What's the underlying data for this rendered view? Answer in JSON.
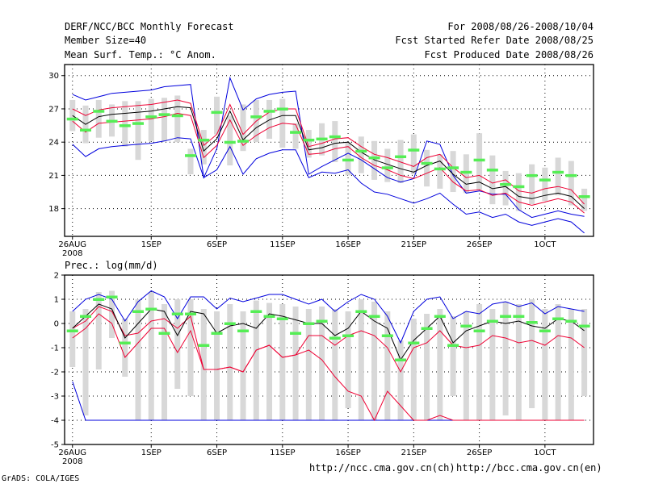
{
  "header": {
    "title": "DERF/NCC/BCC Monthly Forecast",
    "member": "Member Size=40",
    "variable": "Mean Surf. Temp.: °C Anom.",
    "period": "For 2008/08/26-2008/10/04",
    "start": "Fcst Started Refer Date 2008/08/25",
    "produced": "Fcst Produced Date 2008/08/26"
  },
  "footer": {
    "url_ch": "http://ncc.cma.gov.cn(ch)",
    "url_en": "http://bcc.cma.gov.cn(en)",
    "grads": "GrADS: COLA/IGES"
  },
  "colors": {
    "max_min": "#0000dd",
    "quartile": "#ee0033",
    "mean": "#000000",
    "median": "#55ee55",
    "box": "#d8d8d8",
    "grid": "#000000"
  },
  "chart_data": [
    {
      "type": "line",
      "title": "Mean Surf. Temp.: °C Anom.",
      "ylim": [
        15.5,
        31
      ],
      "yticks": [
        18,
        21,
        24,
        27,
        30
      ],
      "xlim": [
        -0.6,
        39.7
      ],
      "xtick_pos": [
        0,
        6,
        11,
        16,
        21,
        26,
        31,
        36
      ],
      "xtick_labels": [
        "26AUG",
        "1SEP",
        "6SEP",
        "11SEP",
        "16SEP",
        "21SEP",
        "26SEP",
        "1OCT"
      ],
      "xsub": "2008",
      "series": [
        {
          "name": "max",
          "values": [
            28.3,
            27.8,
            28.1,
            28.4,
            28.5,
            28.6,
            28.7,
            29.0,
            29.1,
            29.2,
            20.8,
            23.4,
            29.8,
            26.9,
            27.9,
            28.3,
            28.5,
            28.6,
            21.1,
            21.8,
            22.4,
            23.0,
            22.4,
            21.6,
            20.8,
            20.4,
            20.7,
            24.1,
            23.8,
            21.0,
            19.4,
            19.6,
            19.3,
            19.3,
            17.9,
            17.2,
            17.5,
            17.8,
            17.5,
            17.3
          ]
        },
        {
          "name": "q3",
          "values": [
            27.0,
            26.4,
            26.9,
            27.1,
            27.2,
            27.3,
            27.4,
            27.6,
            27.8,
            27.5,
            23.7,
            24.7,
            27.4,
            24.7,
            25.9,
            26.7,
            27.0,
            27.0,
            23.6,
            23.9,
            24.3,
            24.4,
            23.6,
            22.9,
            22.6,
            22.2,
            21.8,
            22.6,
            22.9,
            21.7,
            20.8,
            21.0,
            20.3,
            20.6,
            19.6,
            19.4,
            19.8,
            20.0,
            19.7,
            18.4
          ]
        },
        {
          "name": "mean",
          "values": [
            26.4,
            25.6,
            26.3,
            26.5,
            26.6,
            26.7,
            26.8,
            27.0,
            27.2,
            27.1,
            23.2,
            24.3,
            26.8,
            24.2,
            25.3,
            26.0,
            26.4,
            26.4,
            23.3,
            23.5,
            23.9,
            24.0,
            23.1,
            22.4,
            22.0,
            21.6,
            21.3,
            21.9,
            22.3,
            21.1,
            20.2,
            20.4,
            19.8,
            20.0,
            19.1,
            18.9,
            19.2,
            19.4,
            19.1,
            18.0
          ]
        },
        {
          "name": "q1",
          "values": [
            25.9,
            24.9,
            25.7,
            25.8,
            25.9,
            26.0,
            26.1,
            26.3,
            26.6,
            26.4,
            22.6,
            23.7,
            26.0,
            23.7,
            24.6,
            25.3,
            25.7,
            25.6,
            22.9,
            23.0,
            23.4,
            23.6,
            22.6,
            21.9,
            21.5,
            21.0,
            20.7,
            21.2,
            21.7,
            20.4,
            19.6,
            19.7,
            19.2,
            19.4,
            18.6,
            18.3,
            18.6,
            18.9,
            18.6,
            17.6
          ]
        },
        {
          "name": "min",
          "values": [
            23.8,
            22.7,
            23.4,
            23.6,
            23.7,
            23.8,
            23.9,
            24.1,
            24.4,
            24.3,
            20.8,
            21.5,
            23.6,
            21.1,
            22.5,
            23.0,
            23.3,
            23.3,
            20.8,
            21.3,
            21.2,
            21.5,
            20.3,
            19.5,
            19.3,
            18.9,
            18.5,
            18.9,
            19.4,
            18.4,
            17.5,
            17.7,
            17.2,
            17.5,
            16.8,
            16.5,
            16.8,
            17.1,
            16.8,
            15.8
          ]
        },
        {
          "name": "median",
          "values": [
            26.1,
            25.1,
            26.8,
            25.9,
            25.5,
            25.7,
            26.3,
            26.5,
            26.4,
            22.8,
            24.2,
            26.7,
            24.0,
            24.1,
            26.3,
            26.8,
            27.0,
            24.9,
            24.2,
            24.3,
            24.5,
            22.4,
            23.2,
            22.6,
            21.7,
            22.7,
            23.3,
            22.1,
            21.6,
            21.7,
            21.3,
            22.4,
            21.5,
            20.2,
            20.0,
            21.0,
            20.6,
            21.3,
            21.0,
            19.1
          ]
        },
        {
          "name": "box_high",
          "values": [
            27.8,
            27.3,
            27.8,
            27.4,
            27.7,
            27.7,
            27.9,
            28.0,
            28.2,
            23.4,
            25.1,
            28.1,
            26.4,
            27.4,
            27.8,
            27.8,
            27.9,
            25.7,
            25.1,
            25.7,
            25.9,
            24.0,
            24.5,
            24.1,
            23.4,
            24.2,
            24.7,
            23.3,
            22.9,
            23.2,
            22.9,
            24.8,
            22.8,
            21.4,
            21.2,
            22.0,
            21.7,
            22.6,
            22.3,
            19.8
          ]
        },
        {
          "name": "box_low",
          "values": [
            25.0,
            23.9,
            24.4,
            24.5,
            23.6,
            22.4,
            24.1,
            24.1,
            24.0,
            21.1,
            22.0,
            24.7,
            21.9,
            23.2,
            24.0,
            24.3,
            23.5,
            23.4,
            22.6,
            22.8,
            22.2,
            21.0,
            21.2,
            20.6,
            20.4,
            20.3,
            21.1,
            20.0,
            19.8,
            19.5,
            19.4,
            19.7,
            18.4,
            18.3,
            17.8,
            18.4,
            18.7,
            19.2,
            18.3,
            17.8
          ]
        }
      ]
    },
    {
      "type": "line",
      "title": "Prec.: log(mm/d)",
      "ylim": [
        -5,
        2
      ],
      "yticks": [
        -5,
        -4,
        -3,
        -2,
        -1,
        0,
        1,
        2
      ],
      "xlim": [
        -0.6,
        39.7
      ],
      "xtick_pos": [
        0,
        6,
        11,
        16,
        21,
        26,
        31,
        36
      ],
      "xtick_labels": [
        "26AUG",
        "1SEP",
        "6SEP",
        "11SEP",
        "16SEP",
        "21SEP",
        "26SEP",
        "1OCT"
      ],
      "xsub": "2008",
      "series": [
        {
          "name": "max",
          "values": [
            0.5,
            1.0,
            1.2,
            1.0,
            0.1,
            0.9,
            1.35,
            1.1,
            0.2,
            1.1,
            1.1,
            0.6,
            1.05,
            0.9,
            1.05,
            1.2,
            1.2,
            1.0,
            0.8,
            1.0,
            0.5,
            0.9,
            1.2,
            1.0,
            0.3,
            -0.8,
            0.5,
            1.0,
            1.1,
            0.2,
            0.5,
            0.4,
            0.8,
            0.9,
            0.7,
            0.85,
            0.4,
            0.7,
            0.6,
            0.5
          ]
        },
        {
          "name": "mean",
          "values": [
            -0.2,
            0.3,
            0.8,
            0.6,
            -0.6,
            0.0,
            0.6,
            0.5,
            -0.5,
            0.5,
            0.4,
            -0.4,
            -0.1,
            0.0,
            -0.2,
            0.4,
            0.3,
            0.15,
            0.0,
            0.0,
            -0.5,
            -0.2,
            0.5,
            0.1,
            -0.2,
            -1.5,
            -0.7,
            -0.2,
            0.3,
            -0.8,
            -0.3,
            -0.1,
            0.1,
            0.0,
            0.1,
            -0.1,
            -0.2,
            0.2,
            0.1,
            -0.3
          ]
        },
        {
          "name": "q1",
          "values": [
            -0.6,
            -0.2,
            0.4,
            0.0,
            -1.4,
            -0.8,
            -0.2,
            -0.2,
            -1.2,
            -0.3,
            -1.9,
            -1.9,
            -1.8,
            -2.0,
            -1.1,
            -0.9,
            -1.4,
            -1.3,
            -1.1,
            -1.5,
            -2.2,
            -2.8,
            -3.0,
            -4.0,
            -2.8,
            -3.4,
            -4.0,
            -4.0,
            -3.8,
            -4.0,
            -4.0,
            -4.0,
            -4.0,
            -4.0,
            -4.0,
            -4.0,
            -4.0,
            -4.0,
            -4.0,
            -4.0
          ]
        },
        {
          "name": "q3",
          "values": [
            -0.2,
            0.1,
            0.7,
            0.5,
            -0.5,
            -0.4,
            0.1,
            0.2,
            -0.2,
            0.3,
            -1.9,
            -1.9,
            -1.8,
            -2.0,
            -1.1,
            -0.9,
            -1.4,
            -1.3,
            -0.5,
            -0.5,
            -0.9,
            -0.5,
            -0.3,
            -0.5,
            -1.0,
            -2.0,
            -1.0,
            -0.8,
            -0.3,
            -0.9,
            -1.0,
            -0.9,
            -0.5,
            -0.6,
            -0.8,
            -0.7,
            -0.9,
            -0.5,
            -0.6,
            -1.0
          ]
        },
        {
          "name": "min",
          "values": [
            -2.4,
            -4.0,
            -4.0,
            -4.0,
            -4.0,
            -4.0,
            -4.0,
            -4.0,
            -4.0,
            -4.0,
            -4.0,
            -4.0,
            -4.0,
            -4.0,
            -4.0,
            -4.0,
            -4.0,
            -4.0,
            -4.0,
            -4.0,
            -4.0,
            -4.0,
            -4.0,
            -4.0,
            -4.0,
            -4.0,
            -4.0,
            -4.0,
            -4.0,
            -4.0,
            -4.0,
            -4.0,
            -4.0,
            -4.0,
            -4.0,
            -4.0,
            -4.0,
            -4.0,
            -4.0,
            -4.0
          ]
        },
        {
          "name": "median",
          "values": [
            -0.3,
            0.3,
            1.0,
            1.1,
            -0.8,
            0.5,
            0.6,
            -0.4,
            0.4,
            0.4,
            -0.9,
            -0.4,
            0.0,
            -0.3,
            0.5,
            0.3,
            0.2,
            -0.4,
            0.0,
            0.1,
            -0.6,
            -0.5,
            0.5,
            0.3,
            -0.5,
            -1.5,
            -0.8,
            -0.2,
            0.3,
            -0.9,
            -0.1,
            -0.3,
            0.1,
            0.3,
            0.3,
            0.05,
            -0.3,
            0.2,
            0.1,
            -0.1
          ]
        },
        {
          "name": "box_high",
          "values": [
            0.5,
            0.6,
            1.3,
            1.35,
            0.2,
            1.0,
            1.3,
            0.8,
            1.0,
            1.0,
            0.6,
            0.5,
            0.8,
            0.5,
            0.95,
            0.85,
            0.8,
            0.7,
            0.6,
            0.7,
            0.6,
            0.5,
            1.0,
            0.9,
            0.5,
            -0.7,
            0.2,
            0.4,
            0.6,
            0.3,
            0.5,
            0.8,
            0.6,
            0.9,
            0.8,
            1.0,
            0.6,
            0.8,
            0.6,
            0.6
          ]
        },
        {
          "name": "box_low",
          "values": [
            -1.8,
            -3.8,
            -1.9,
            -0.6,
            -2.2,
            -4.0,
            -4.0,
            -4.0,
            -2.7,
            -3.0,
            -4.0,
            -4.0,
            -4.0,
            -4.0,
            -4.0,
            -4.0,
            -4.0,
            -4.0,
            -4.0,
            -4.0,
            -4.0,
            -3.5,
            -4.0,
            -4.0,
            -4.0,
            -4.0,
            -4.0,
            -4.0,
            -4.0,
            -3.0,
            -4.0,
            -4.0,
            -4.0,
            -3.8,
            -4.0,
            -3.5,
            -4.0,
            -4.0,
            -4.0,
            -3.0
          ]
        }
      ]
    }
  ]
}
